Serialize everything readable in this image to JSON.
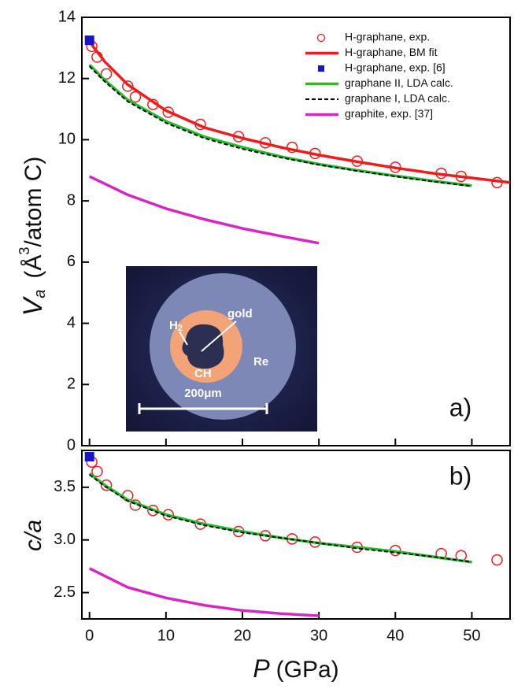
{
  "chart_data": [
    {
      "type": "line",
      "panel_label": "a)",
      "y_label": {
        "symbol": "V",
        "subscript": "a",
        "unit_open": "(Å",
        "unit_power": "3",
        "unit_rest": "/atom C)"
      },
      "xlim": [
        -1,
        55
      ],
      "xticks": [
        0,
        10,
        20,
        30,
        40,
        50
      ],
      "ylim": [
        0,
        14
      ],
      "yticks": [
        0,
        2,
        4,
        6,
        8,
        10,
        12,
        14
      ],
      "legend": "upper right",
      "series": [
        {
          "name": "H-graphane, exp.",
          "color": "#ee1c1c",
          "style": "markers",
          "marker": "circle",
          "x": [
            0.3,
            1,
            2.2,
            5,
            6,
            8.3,
            10.3,
            14.5,
            19.5,
            23,
            26.5,
            29.5,
            35,
            40,
            46,
            48.6,
            53.3
          ],
          "values": [
            13.05,
            12.7,
            12.15,
            11.75,
            11.4,
            11.15,
            10.9,
            10.5,
            10.1,
            9.9,
            9.75,
            9.55,
            9.3,
            9.1,
            8.9,
            8.8,
            8.6
          ]
        },
        {
          "name": "H-graphane, BM fit",
          "color": "#ee1c1c",
          "style": "line",
          "x": [
            0,
            2,
            5,
            10,
            15,
            20,
            25,
            30,
            35,
            40,
            45,
            50,
            55
          ],
          "values": [
            13.2,
            12.55,
            11.8,
            10.95,
            10.4,
            10.05,
            9.75,
            9.5,
            9.28,
            9.08,
            8.9,
            8.75,
            8.6
          ]
        },
        {
          "name": "H-graphane, exp. [6]",
          "color": "#1616c8",
          "style": "markers",
          "marker": "square",
          "x": [
            0
          ],
          "values": [
            13.25
          ]
        },
        {
          "name": "graphane II, LDA calc.",
          "color": "#22c02a",
          "style": "line",
          "x": [
            0,
            2,
            5,
            10,
            15,
            20,
            25,
            30,
            35,
            40,
            45,
            50
          ],
          "values": [
            12.45,
            11.95,
            11.3,
            10.6,
            10.1,
            9.75,
            9.45,
            9.2,
            9.0,
            8.82,
            8.65,
            8.5
          ]
        },
        {
          "name": "graphane I, LDA calc.",
          "color": "#000000",
          "style": "dashed",
          "x": [
            0,
            2,
            5,
            10,
            15,
            20,
            25,
            30,
            35,
            40,
            45,
            50
          ],
          "values": [
            12.4,
            11.9,
            11.25,
            10.55,
            10.05,
            9.7,
            9.42,
            9.18,
            8.98,
            8.8,
            8.63,
            8.48
          ]
        },
        {
          "name": "graphite, exp. [37]",
          "color": "#d726c4",
          "style": "line",
          "x": [
            0,
            5,
            10,
            15,
            20,
            25,
            30
          ],
          "values": [
            8.8,
            8.2,
            7.75,
            7.4,
            7.1,
            6.85,
            6.62
          ]
        }
      ],
      "inset": {
        "h": "H",
        "h_sub": "2",
        "gold": "gold",
        "re": "Re",
        "ch": "CH",
        "scale": "200μm"
      }
    },
    {
      "type": "line",
      "panel_label": "b)",
      "y_label": "c/a",
      "x_label": {
        "symbol": "P",
        "unit": "(GPa)"
      },
      "xlim": [
        -1,
        55
      ],
      "xticks": [
        0,
        10,
        20,
        30,
        40,
        50
      ],
      "ylim": [
        2.25,
        3.85
      ],
      "yticks": [
        2.5,
        {
          "value": 3,
          "label": "3.0"
        },
        3.5
      ],
      "series": [
        {
          "color": "#ee1c1c",
          "style": "markers",
          "marker": "circle",
          "x": [
            0.3,
            1,
            2.2,
            5,
            6,
            8.3,
            10.3,
            14.5,
            19.5,
            23,
            26.5,
            29.5,
            35,
            40,
            46,
            48.6,
            53.3
          ],
          "values": [
            3.74,
            3.65,
            3.52,
            3.42,
            3.33,
            3.28,
            3.24,
            3.15,
            3.08,
            3.04,
            3.01,
            2.98,
            2.93,
            2.9,
            2.87,
            2.85,
            2.81
          ]
        },
        {
          "color": "#1616c8",
          "style": "markers",
          "marker": "square",
          "x": [
            0
          ],
          "values": [
            3.79
          ]
        },
        {
          "color": "#22c02a",
          "style": "line",
          "x": [
            0,
            2,
            5,
            10,
            15,
            20,
            25,
            30,
            35,
            40,
            45,
            50
          ],
          "values": [
            3.63,
            3.52,
            3.38,
            3.24,
            3.15,
            3.08,
            3.02,
            2.97,
            2.93,
            2.89,
            2.84,
            2.79
          ]
        },
        {
          "color": "#000000",
          "style": "dashed",
          "x": [
            0,
            2,
            5,
            10,
            15,
            20,
            25,
            30,
            35,
            40,
            45,
            50
          ],
          "values": [
            3.62,
            3.51,
            3.37,
            3.23,
            3.14,
            3.07,
            3.02,
            2.97,
            2.92,
            2.88,
            2.84,
            2.79
          ]
        },
        {
          "color": "#d726c4",
          "style": "line",
          "x": [
            0,
            5,
            10,
            15,
            20,
            25,
            30
          ],
          "values": [
            2.73,
            2.55,
            2.45,
            2.38,
            2.33,
            2.3,
            2.28
          ]
        }
      ]
    }
  ]
}
